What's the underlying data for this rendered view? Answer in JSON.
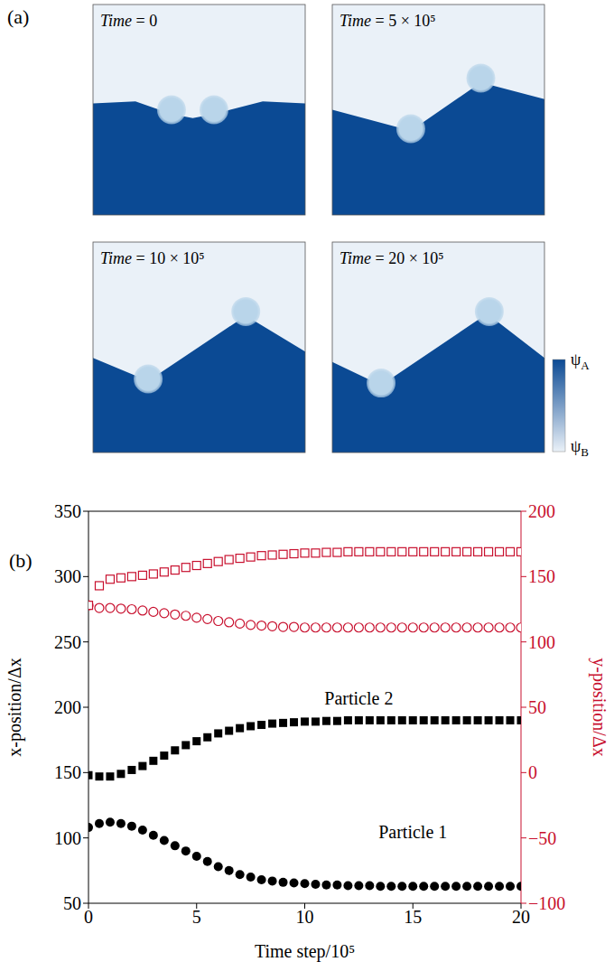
{
  "panel_a": {
    "label": "(a)",
    "snapshots": [
      "Time = 0",
      "Time = 5 × 10⁵",
      "Time = 10 × 10⁵",
      "Time = 20 × 10⁵"
    ],
    "colorbar": {
      "top": "ψA",
      "bottom": "ψB"
    }
  },
  "chart_data": {
    "panel_label": "(b)",
    "type": "scatter",
    "x_label": "Time step/10⁵",
    "y_label": "x-position/Δx",
    "y2_label": "y-position/Δx",
    "x": [
      0,
      0.5,
      1,
      1.5,
      2,
      2.5,
      3,
      3.5,
      4,
      4.5,
      5,
      5.5,
      6,
      6.5,
      7,
      7.5,
      8,
      8.5,
      9,
      9.5,
      10,
      10.5,
      11,
      11.5,
      12,
      12.5,
      13,
      13.5,
      14,
      14.5,
      15,
      15.5,
      16,
      16.5,
      17,
      17.5,
      18,
      18.5,
      19,
      19.5,
      20
    ],
    "xlim": [
      0,
      20
    ],
    "xticks": [
      0,
      5,
      10,
      15,
      20
    ],
    "ylim": [
      50,
      350
    ],
    "yticks": [
      50,
      100,
      150,
      200,
      250,
      300,
      350
    ],
    "y2lim": [
      -100,
      200
    ],
    "y2ticks": [
      {
        "value": -100,
        "label": "−100"
      },
      {
        "value": -50,
        "label": "−50"
      },
      0,
      50,
      100,
      150,
      200
    ],
    "series": [
      {
        "name": "Particle 1",
        "color": "#000000",
        "marker": "filled_circle",
        "values": [
          108,
          111,
          112,
          111,
          109,
          106,
          102,
          98,
          94,
          90,
          86,
          82,
          78,
          75,
          72,
          70,
          68,
          67,
          66,
          65.5,
          65,
          64.5,
          64,
          64,
          63.5,
          63.5,
          63.5,
          63,
          63,
          63,
          63,
          63,
          63,
          63,
          63,
          63,
          63,
          63,
          63,
          63,
          63
        ]
      },
      {
        "name": "Particle 2",
        "color": "#000000",
        "marker": "filled_square",
        "values": [
          148,
          147,
          147,
          149,
          152,
          155,
          159,
          163,
          167,
          171,
          174,
          177,
          180,
          182,
          184,
          185.5,
          186.5,
          187.5,
          188,
          188.5,
          189,
          189,
          189.5,
          189.5,
          190,
          190,
          190,
          190,
          190,
          190,
          190,
          190,
          190,
          190,
          190,
          190,
          190,
          190,
          190,
          190,
          190
        ]
      },
      {
        "name": "Particle 1",
        "color": "#c8102e",
        "marker": "open_circle",
        "axis": "y2",
        "values": [
          128,
          126,
          126,
          125.5,
          125,
          124,
          123,
          122,
          121,
          120,
          118.5,
          117.5,
          116,
          115,
          114,
          113,
          112.5,
          112,
          111.5,
          111.5,
          111,
          111,
          111,
          111,
          111,
          111,
          111,
          111,
          111,
          111,
          111,
          111,
          111,
          111,
          111,
          111,
          111,
          111,
          111,
          111,
          111
        ]
      },
      {
        "name": "Particle 2",
        "color": "#c8102e",
        "marker": "open_square",
        "axis": "y2",
        "values": [
          128,
          143,
          148,
          149,
          150,
          151,
          152,
          153.5,
          155,
          157,
          158.5,
          160,
          161.5,
          163,
          164,
          165,
          166,
          166.5,
          167,
          167.5,
          168,
          168,
          168.5,
          168.5,
          169,
          169,
          169,
          169,
          169,
          169,
          169,
          169,
          169,
          169,
          169,
          169,
          169,
          169,
          169,
          169,
          169
        ]
      }
    ],
    "annotations": [
      {
        "text": "Particle 2",
        "x": 12.5,
        "y": 207
      },
      {
        "text": "Particle 1",
        "x": 15,
        "y": 105
      }
    ]
  }
}
